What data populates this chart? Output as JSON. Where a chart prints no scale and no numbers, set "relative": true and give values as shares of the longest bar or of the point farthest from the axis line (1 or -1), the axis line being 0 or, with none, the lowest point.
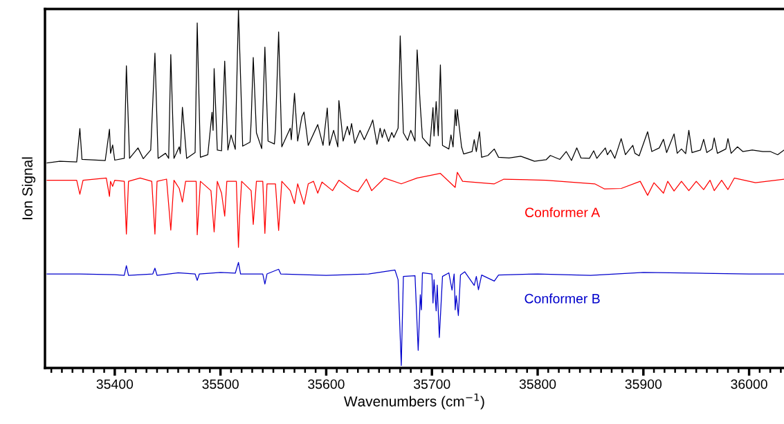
{
  "chart_data": {
    "type": "line",
    "relative": true,
    "xlabel": "Wavenumbers (cm$^{−1}$)",
    "ylabel": "Ion Signal",
    "legend": false,
    "grid": false,
    "tick_labels": "x",
    "xlim": [
      35334,
      36033
    ],
    "xticks": [
      {
        "value": 35340,
        "label": null
      },
      {
        "value": 35350,
        "label": null
      },
      {
        "value": 35360,
        "label": null
      },
      {
        "value": 35370,
        "label": null
      },
      {
        "value": 35380,
        "label": null
      },
      {
        "value": 35390,
        "label": null
      },
      35400,
      {
        "value": 35410,
        "label": null
      },
      {
        "value": 35420,
        "label": null
      },
      {
        "value": 35430,
        "label": null
      },
      {
        "value": 35440,
        "label": null
      },
      {
        "value": 35450,
        "label": null
      },
      {
        "value": 35460,
        "label": null
      },
      {
        "value": 35470,
        "label": null
      },
      {
        "value": 35480,
        "label": null
      },
      {
        "value": 35490,
        "label": null
      },
      35500,
      {
        "value": 35510,
        "label": null
      },
      {
        "value": 35520,
        "label": null
      },
      {
        "value": 35530,
        "label": null
      },
      {
        "value": 35540,
        "label": null
      },
      {
        "value": 35550,
        "label": null
      },
      {
        "value": 35560,
        "label": null
      },
      {
        "value": 35570,
        "label": null
      },
      {
        "value": 35580,
        "label": null
      },
      {
        "value": 35590,
        "label": null
      },
      35600,
      {
        "value": 35610,
        "label": null
      },
      {
        "value": 35620,
        "label": null
      },
      {
        "value": 35630,
        "label": null
      },
      {
        "value": 35640,
        "label": null
      },
      {
        "value": 35650,
        "label": null
      },
      {
        "value": 35660,
        "label": null
      },
      {
        "value": 35670,
        "label": null
      },
      {
        "value": 35680,
        "label": null
      },
      {
        "value": 35690,
        "label": null
      },
      35700,
      {
        "value": 35710,
        "label": null
      },
      {
        "value": 35720,
        "label": null
      },
      {
        "value": 35730,
        "label": null
      },
      {
        "value": 35740,
        "label": null
      },
      {
        "value": 35750,
        "label": null
      },
      {
        "value": 35760,
        "label": null
      },
      {
        "value": 35770,
        "label": null
      },
      {
        "value": 35780,
        "label": null
      },
      {
        "value": 35790,
        "label": null
      },
      35800,
      {
        "value": 35810,
        "label": null
      },
      {
        "value": 35820,
        "label": null
      },
      {
        "value": 35830,
        "label": null
      },
      {
        "value": 35840,
        "label": null
      },
      {
        "value": 35850,
        "label": null
      },
      {
        "value": 35860,
        "label": null
      },
      {
        "value": 35870,
        "label": null
      },
      {
        "value": 35880,
        "label": null
      },
      {
        "value": 35890,
        "label": null
      },
      35900,
      {
        "value": 35910,
        "label": null
      },
      {
        "value": 35920,
        "label": null
      },
      {
        "value": 35930,
        "label": null
      },
      {
        "value": 35940,
        "label": null
      },
      {
        "value": 35950,
        "label": null
      },
      {
        "value": 35960,
        "label": null
      },
      {
        "value": 35970,
        "label": null
      },
      {
        "value": 35980,
        "label": null
      },
      {
        "value": 35990,
        "label": null
      },
      36000,
      {
        "value": 36010,
        "label": null
      },
      {
        "value": 36020,
        "label": null
      },
      {
        "value": 36030,
        "label": null
      }
    ],
    "series": [
      {
        "color": "#000000",
        "x": [
          35336,
          35348,
          35364,
          35367,
          35369,
          35391,
          35395,
          35396,
          35398,
          35400,
          35409,
          35411,
          35414,
          35422,
          35427,
          35434,
          35438,
          35441,
          35448,
          35451,
          35453,
          35456,
          35461,
          35462,
          35464,
          35468,
          35476,
          35478,
          35481,
          35488,
          35492,
          35493,
          35494,
          35497,
          35501,
          35504,
          35507,
          35510,
          35514,
          35517,
          35521,
          35528,
          35529,
          35531,
          35534,
          35539,
          35542,
          35545,
          35551,
          35552,
          35555,
          35558,
          35566,
          35567,
          35570,
          35573,
          35577,
          35579,
          35583,
          35592,
          35597,
          35601,
          35603,
          35607,
          35611,
          35612,
          35616,
          35620,
          35622,
          35624,
          35627,
          35632,
          35636,
          35642,
          35644,
          35648,
          35651,
          35653,
          35655,
          35659,
          35662,
          35664,
          35668,
          35670,
          35673,
          35677,
          35680,
          35684,
          35686,
          35689,
          35691,
          35698,
          35701,
          35702,
          35704,
          35706,
          35708,
          35710,
          35716,
          35718,
          35720,
          35722,
          35723,
          35724,
          35728,
          35730,
          35738,
          35740,
          35742,
          35745,
          35747,
          35753,
          35759,
          35763,
          35773,
          35784,
          35797,
          35808,
          35812,
          35821,
          35827,
          35832,
          35837,
          35841,
          35849,
          35853,
          35856,
          35864,
          35866,
          35869,
          35873,
          35879,
          35883,
          35890,
          35892,
          35896,
          35904,
          35908,
          35915,
          35919,
          35922,
          35929,
          35932,
          35936,
          35940,
          35943,
          35946,
          35954,
          35957,
          35960,
          35965,
          35967,
          35970,
          35978,
          35980,
          35983,
          35989,
          35994,
          36003,
          36013,
          36020,
          36027,
          36033
        ],
        "values": [
          0.571,
          0.576,
          0.574,
          0.667,
          0.581,
          0.578,
          0.665,
          0.598,
          0.621,
          0.579,
          0.584,
          0.842,
          0.584,
          0.613,
          0.583,
          0.607,
          0.877,
          0.584,
          0.598,
          0.584,
          0.873,
          0.584,
          0.616,
          0.597,
          0.726,
          0.584,
          0.6,
          0.961,
          0.587,
          0.594,
          0.712,
          0.662,
          0.834,
          0.607,
          0.605,
          0.855,
          0.607,
          0.649,
          0.609,
          1.0,
          0.618,
          0.629,
          0.687,
          0.865,
          0.655,
          0.611,
          0.894,
          0.632,
          0.624,
          0.665,
          0.936,
          0.616,
          0.668,
          0.636,
          0.765,
          0.632,
          0.7,
          0.713,
          0.62,
          0.678,
          0.62,
          0.724,
          0.62,
          0.662,
          0.616,
          0.745,
          0.632,
          0.673,
          0.649,
          0.681,
          0.626,
          0.662,
          0.636,
          0.675,
          0.691,
          0.623,
          0.668,
          0.642,
          0.665,
          0.631,
          0.656,
          0.642,
          0.668,
          0.925,
          0.655,
          0.634,
          0.662,
          0.632,
          0.886,
          0.729,
          0.642,
          0.618,
          0.725,
          0.646,
          0.742,
          0.647,
          0.844,
          0.62,
          0.61,
          0.649,
          0.616,
          0.72,
          0.675,
          0.72,
          0.616,
          0.596,
          0.603,
          0.636,
          0.603,
          0.658,
          0.587,
          0.592,
          0.61,
          0.587,
          0.585,
          0.59,
          0.576,
          0.58,
          0.592,
          0.581,
          0.603,
          0.578,
          0.613,
          0.585,
          0.584,
          0.605,
          0.584,
          0.613,
          0.594,
          0.607,
          0.584,
          0.639,
          0.594,
          0.62,
          0.598,
          0.591,
          0.658,
          0.603,
          0.613,
          0.637,
          0.6,
          0.652,
          0.598,
          0.61,
          0.597,
          0.662,
          0.6,
          0.607,
          0.637,
          0.6,
          0.61,
          0.641,
          0.598,
          0.61,
          0.639,
          0.598,
          0.616,
          0.603,
          0.607,
          0.603,
          0.603,
          0.594,
          0.607
        ]
      },
      {
        "name": "Conformer A",
        "color": "#ff0000",
        "x": [
          35336,
          35364,
          35367,
          35370,
          35392,
          35395,
          35396,
          35398,
          35400,
          35409,
          35411,
          35413,
          35424,
          35435,
          35438,
          35440,
          35449,
          35453,
          35456,
          35461,
          35464,
          35467,
          35477,
          35478,
          35481,
          35491,
          35494,
          35497,
          35501,
          35504,
          35506,
          35515,
          35517,
          35518,
          35520,
          35529,
          35531,
          35534,
          35540,
          35542,
          35544,
          35552,
          35555,
          35558,
          35566,
          35570,
          35573,
          35579,
          35583,
          35588,
          35592,
          35596,
          35606,
          35612,
          35624,
          35630,
          35638,
          35643,
          35655,
          35671,
          35686,
          35708,
          35722,
          35724,
          35729,
          35759,
          35768,
          35808,
          35854,
          35863,
          35879,
          35897,
          35904,
          35910,
          35919,
          35923,
          35929,
          35936,
          35943,
          35950,
          35957,
          35963,
          35967,
          35974,
          35980,
          35986,
          36006,
          36033
        ],
        "values": [
          0.523,
          0.523,
          0.484,
          0.523,
          0.529,
          0.478,
          0.52,
          0.506,
          0.523,
          0.52,
          0.373,
          0.52,
          0.529,
          0.52,
          0.373,
          0.52,
          0.526,
          0.384,
          0.523,
          0.5,
          0.462,
          0.52,
          0.52,
          0.371,
          0.52,
          0.494,
          0.379,
          0.52,
          0.487,
          0.423,
          0.52,
          0.52,
          0.336,
          0.416,
          0.52,
          0.494,
          0.4,
          0.52,
          0.52,
          0.375,
          0.513,
          0.513,
          0.383,
          0.52,
          0.494,
          0.458,
          0.513,
          0.456,
          0.513,
          0.52,
          0.487,
          0.518,
          0.494,
          0.523,
          0.497,
          0.491,
          0.526,
          0.494,
          0.529,
          0.513,
          0.529,
          0.542,
          0.503,
          0.545,
          0.52,
          0.513,
          0.526,
          0.523,
          0.513,
          0.499,
          0.5,
          0.52,
          0.481,
          0.516,
          0.487,
          0.52,
          0.493,
          0.52,
          0.494,
          0.52,
          0.497,
          0.523,
          0.494,
          0.523,
          0.497,
          0.529,
          0.516,
          0.526
        ]
      },
      {
        "name": "Conformer B",
        "color": "#0000cc",
        "x": [
          35336,
          35367,
          35400,
          35409,
          35411,
          35413,
          35436,
          35438,
          35440,
          35460,
          35476,
          35478,
          35480,
          35500,
          35514,
          35517,
          35519,
          35540,
          35542,
          35544,
          35555,
          35557,
          35600,
          35640,
          35665,
          35668,
          35671,
          35673,
          35684,
          35687,
          35689,
          35690,
          35691,
          35700,
          35701,
          35702,
          35704,
          35705,
          35707,
          35710,
          35716,
          35719,
          35721,
          35722,
          35723,
          35725,
          35727,
          35731,
          35740,
          35742,
          35744,
          35747,
          35759,
          35763,
          35800,
          35850,
          35900,
          35950,
          36000,
          36033
        ],
        "values": [
          0.262,
          0.262,
          0.26,
          0.258,
          0.285,
          0.258,
          0.262,
          0.278,
          0.258,
          0.265,
          0.262,
          0.244,
          0.262,
          0.266,
          0.264,
          0.294,
          0.262,
          0.262,
          0.234,
          0.262,
          0.275,
          0.262,
          0.258,
          0.262,
          0.273,
          0.246,
          0.007,
          0.255,
          0.257,
          0.049,
          0.204,
          0.162,
          0.265,
          0.262,
          0.181,
          0.246,
          0.159,
          0.231,
          0.085,
          0.255,
          0.265,
          0.217,
          0.262,
          0.162,
          0.201,
          0.146,
          0.259,
          0.268,
          0.23,
          0.255,
          0.218,
          0.259,
          0.242,
          0.259,
          0.262,
          0.258,
          0.266,
          0.264,
          0.262,
          0.262
        ]
      }
    ]
  }
}
